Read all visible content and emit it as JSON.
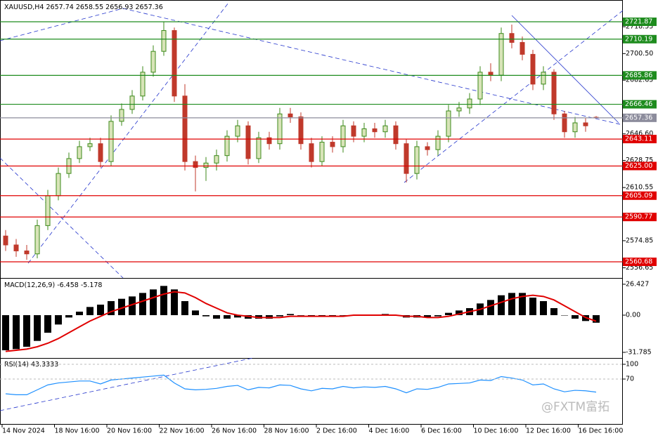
{
  "chart_data": {
    "type": "candlestick",
    "symbol": "XAUUSD,H4",
    "open": [
      2578,
      2572,
      2568,
      2566,
      2585,
      2605,
      2620,
      2630,
      2638,
      2640,
      2628,
      2655,
      2663,
      2672,
      2688,
      2702,
      2716,
      2672,
      2628,
      2624,
      2627,
      2632,
      2645,
      2652,
      2630,
      2644,
      2640,
      2660,
      2658,
      2640,
      2628,
      2641,
      2638,
      2652,
      2645,
      2650,
      2648,
      2652,
      2640,
      2620,
      2638,
      2636,
      2645,
      2662,
      2664,
      2670,
      2688,
      2686,
      2714,
      2708,
      2700,
      2680,
      2688,
      2660,
      2648,
      2654,
      2657.74
    ],
    "high": [
      2582,
      2576,
      2572,
      2589,
      2609,
      2624,
      2634,
      2642,
      2644,
      2644,
      2659,
      2667,
      2676,
      2692,
      2706,
      2722,
      2718,
      2680,
      2632,
      2631,
      2636,
      2649,
      2656,
      2655,
      2648,
      2648,
      2664,
      2664,
      2661,
      2644,
      2645,
      2645,
      2656,
      2655,
      2654,
      2654,
      2656,
      2655,
      2643,
      2642,
      2641,
      2649,
      2666,
      2668,
      2674,
      2692,
      2694,
      2718,
      2720,
      2712,
      2703,
      2692,
      2690,
      2662,
      2658,
      2657,
      2658.55
    ],
    "low": [
      2568,
      2564,
      2562,
      2563,
      2582,
      2602,
      2617,
      2627,
      2635,
      2624,
      2625,
      2652,
      2660,
      2669,
      2685,
      2699,
      2668,
      2622,
      2608,
      2615,
      2622,
      2628,
      2641,
      2626,
      2627,
      2636,
      2636,
      2654,
      2636,
      2624,
      2625,
      2634,
      2634,
      2641,
      2641,
      2644,
      2644,
      2636,
      2614,
      2616,
      2632,
      2632,
      2641,
      2658,
      2660,
      2666,
      2682,
      2682,
      2704,
      2696,
      2676,
      2676,
      2656,
      2644,
      2644,
      2648,
      2656.93
    ],
    "close": [
      2572,
      2568,
      2566,
      2585,
      2605,
      2620,
      2630,
      2638,
      2640,
      2628,
      2655,
      2663,
      2672,
      2688,
      2702,
      2716,
      2672,
      2628,
      2624,
      2627,
      2632,
      2645,
      2652,
      2630,
      2644,
      2640,
      2660,
      2658,
      2640,
      2628,
      2641,
      2638,
      2652,
      2645,
      2650,
      2648,
      2652,
      2640,
      2620,
      2638,
      2636,
      2645,
      2662,
      2664,
      2670,
      2688,
      2686,
      2714,
      2708,
      2700,
      2680,
      2688,
      2660,
      2648,
      2654,
      2652,
      2657.36
    ],
    "up_fill": "#d8e4b8",
    "up_color": "#3c8a1a",
    "down_color": "#c0392b",
    "ylim": [
      2550.3,
      2734.6
    ],
    "yticks": [
      2718.55,
      {
        "value": 2700.5,
        "label": "2700.50"
      },
      2682.65,
      {
        "value": 2646.6,
        "label": "2646.60"
      },
      2628.75,
      2610.55,
      2574.85,
      2556.65
    ],
    "levels": [
      {
        "value": 2721.87,
        "color": "#1e8c1e"
      },
      {
        "value": 2710.19,
        "color": "#1e8c1e"
      },
      {
        "value": 2685.86,
        "color": "#1e8c1e"
      },
      {
        "value": 2666.46,
        "color": "#1e8c1e"
      },
      {
        "value": 2643.11,
        "color": "#e00000"
      },
      {
        "value": 2625,
        "label": "2625.00",
        "color": "#e00000"
      },
      {
        "value": 2605.09,
        "color": "#e00000"
      },
      {
        "value": 2590.77,
        "color": "#e00000"
      },
      {
        "value": 2560.68,
        "color": "#e00000"
      }
    ],
    "x_labels": [
      "14 Nov 2024",
      "18 Nov 16:00",
      "20 Nov 16:00",
      "22 Nov 16:00",
      "26 Nov 16:00",
      "28 Nov 16:00",
      "2 Dec 16:00",
      "4 Dec 16:00",
      "6 Dec 16:00",
      "10 Dec 16:00",
      "12 Dec 16:00",
      "16 Dec 16:00"
    ],
    "macd": {
      "name": "MACD(12,26,9)",
      "color": "#000000",
      "signal_color": "#e00000",
      "histogram": [
        -30,
        -29,
        -27,
        -22,
        -15,
        -8,
        -2,
        3,
        7,
        9,
        12,
        14,
        16,
        19,
        22,
        25,
        22,
        12,
        4,
        -1,
        -3,
        -3,
        -2,
        -3,
        -3,
        -3,
        -1,
        1,
        0,
        -1,
        -1,
        -1,
        0,
        0,
        0,
        0,
        1,
        0,
        -2,
        -2,
        -2,
        -1,
        2,
        4,
        6,
        10,
        13,
        17,
        19,
        19,
        15,
        12,
        6,
        0,
        -3,
        -5,
        -6.458
      ],
      "signal": [
        -31,
        -30,
        -29,
        -27,
        -24,
        -20,
        -15,
        -10,
        -5,
        -1,
        3,
        6,
        9,
        12,
        15,
        18,
        20,
        19,
        15,
        10,
        6,
        2,
        0,
        -1,
        -2,
        -2,
        -2,
        -1,
        -1,
        -1,
        -1,
        -1,
        -1,
        0,
        0,
        0,
        0,
        0,
        -1,
        -1,
        -2,
        -2,
        -1,
        1,
        3,
        5,
        8,
        11,
        14,
        16,
        17,
        16,
        13,
        8,
        3,
        -2,
        -5.178
      ],
      "ylim": [
        -36.6,
        30.6
      ],
      "yticks": [
        26.427,
        {
          "value": 0,
          "label": "0.00"
        },
        -31.785
      ]
    },
    "rsi": {
      "name": "RSI(14)",
      "color": "#1e90ff",
      "values": [
        40,
        38,
        38,
        48,
        58,
        62,
        64,
        66,
        66,
        60,
        68,
        70,
        72,
        74,
        76,
        78,
        62,
        50,
        48,
        49,
        51,
        55,
        57,
        48,
        53,
        52,
        58,
        57,
        50,
        46,
        51,
        50,
        55,
        52,
        54,
        53,
        55,
        50,
        42,
        50,
        49,
        53,
        60,
        61,
        62,
        68,
        67,
        75,
        72,
        68,
        58,
        60,
        50,
        44,
        47,
        46,
        43.3333
      ],
      "ylim": [
        -22.9,
        110
      ],
      "yticks": [
        100,
        70
      ]
    }
  },
  "watermark": "@FXTM富拓"
}
